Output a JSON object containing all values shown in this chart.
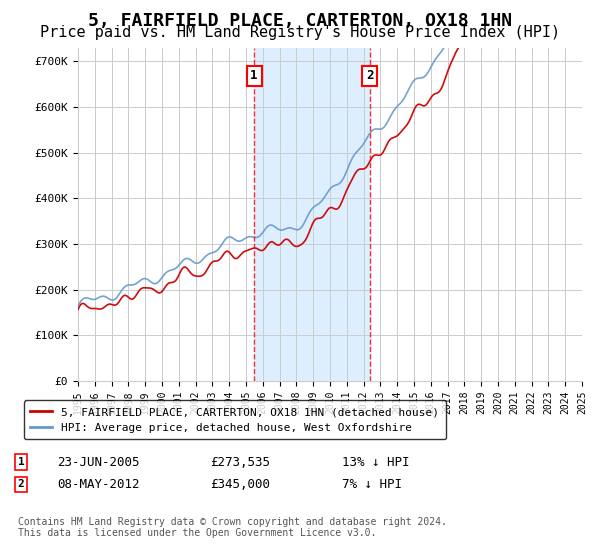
{
  "title": "5, FAIRFIELD PLACE, CARTERTON, OX18 1HN",
  "subtitle": "Price paid vs. HM Land Registry's House Price Index (HPI)",
  "ylim": [
    0,
    730000
  ],
  "yticks": [
    0,
    100000,
    200000,
    300000,
    400000,
    500000,
    600000,
    700000
  ],
  "ytick_labels": [
    "£0",
    "£100K",
    "£200K",
    "£300K",
    "£400K",
    "£500K",
    "£600K",
    "£700K"
  ],
  "marker1": {
    "date_num": 10.48,
    "value": 273535,
    "label": "1",
    "date_str": "23-JUN-2005",
    "price": "£273,535",
    "hpi_diff": "13% ↓ HPI"
  },
  "marker2": {
    "date_num": 17.37,
    "value": 345000,
    "label": "2",
    "date_str": "08-MAY-2012",
    "price": "£345,000",
    "hpi_diff": "7% ↓ HPI"
  },
  "legend_house": "5, FAIRFIELD PLACE, CARTERTON, OX18 1HN (detached house)",
  "legend_hpi": "HPI: Average price, detached house, West Oxfordshire",
  "footnote": "Contains HM Land Registry data © Crown copyright and database right 2024.\nThis data is licensed under the Open Government Licence v3.0.",
  "house_color": "#cc0000",
  "hpi_color": "#6699cc",
  "shade_color": "#ddeeff",
  "grid_color": "#cccccc",
  "background_color": "#ffffff",
  "title_fontsize": 13,
  "subtitle_fontsize": 11
}
